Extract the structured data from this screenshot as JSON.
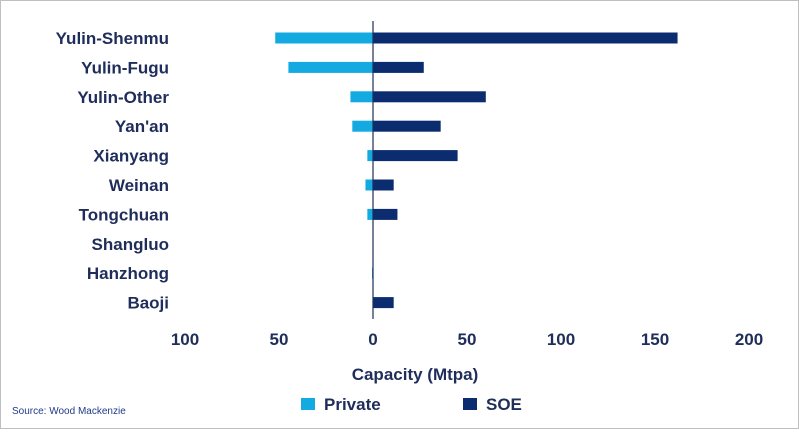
{
  "chart_data": {
    "type": "bar",
    "orientation": "horizontal",
    "categories": [
      "Yulin-Shenmu",
      "Yulin-Fugu",
      "Yulin-Other",
      "Yan'an",
      "Xianyang",
      "Weinan",
      "Tongchuan",
      "Shangluo",
      "Hanzhong",
      "Baoji"
    ],
    "series": [
      {
        "name": "Private",
        "color": "#13a9e1",
        "values": [
          -52,
          -45,
          -12,
          -11,
          -3,
          -4,
          -3,
          0,
          -0.5,
          0
        ]
      },
      {
        "name": "SOE",
        "color": "#0b2c6e",
        "values": [
          162,
          27,
          60,
          36,
          45,
          11,
          13,
          0,
          0,
          11
        ]
      }
    ],
    "xlabel": "Capacity (Mtpa)",
    "xlim": [
      -100,
      200
    ],
    "xticks": [
      -100,
      -50,
      0,
      50,
      100,
      150,
      200
    ],
    "xtick_labels": [
      "100",
      "50",
      "0",
      "50",
      "100",
      "150",
      "200"
    ],
    "legend_position": "bottom",
    "source": "Source: Wood Mackenzie"
  }
}
